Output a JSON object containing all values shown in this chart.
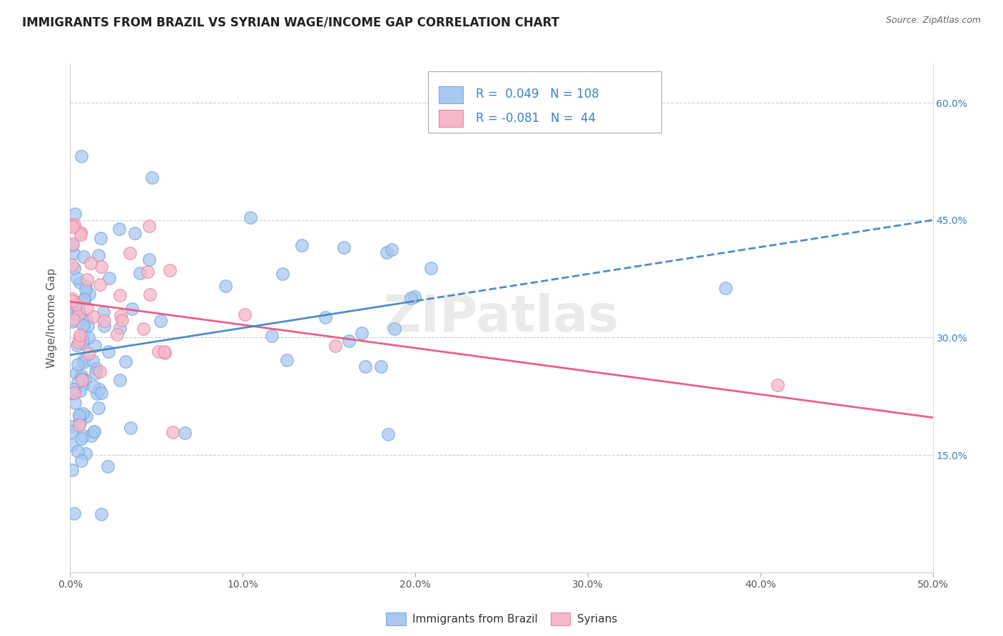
{
  "title": "IMMIGRANTS FROM BRAZIL VS SYRIAN WAGE/INCOME GAP CORRELATION CHART",
  "source": "Source: ZipAtlas.com",
  "ylabel": "Wage/Income Gap",
  "xlim": [
    0.0,
    0.5
  ],
  "ylim": [
    0.0,
    0.65
  ],
  "brazil_color": "#A8C8F0",
  "brazil_edge_color": "#7AAAE0",
  "syrian_color": "#F5B8C8",
  "syrian_edge_color": "#E888A8",
  "brazil_R": "0.049",
  "brazil_N": "108",
  "syrian_R": "-0.081",
  "syrian_N": "44",
  "brazil_line_color": "#3B82C4",
  "syrian_line_color": "#E8507A",
  "legend_text_color": "#3B82C4",
  "watermark": "ZIPatlas",
  "title_fontsize": 12,
  "axis_label_color": "#555555",
  "ytick_color": "#3B82C4",
  "grid_color": "#cccccc"
}
